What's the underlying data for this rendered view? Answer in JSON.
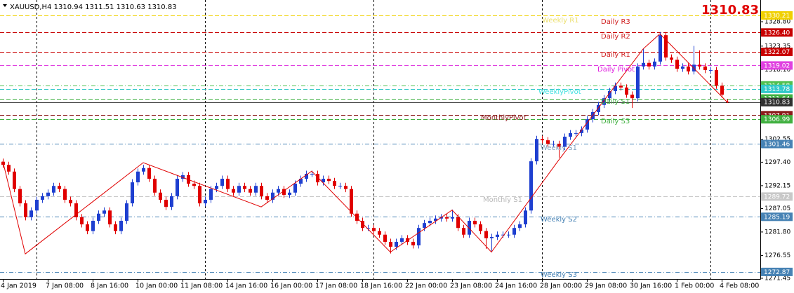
{
  "chart_data": {
    "type": "candlestick",
    "title": "XAUUSD,H4  1310.94 1311.51 1310.63 1310.83",
    "price_display": "1310.83",
    "up_color": "#1e3fd0",
    "down_color": "#e00000",
    "ylim": [
      1271.29,
      1333.66
    ],
    "yticks": [
      {
        "value": 1328.8,
        "label": "1328.80"
      },
      {
        "value": 1323.35,
        "label": "1323.35"
      },
      {
        "value": 1318.1,
        "label": "1318.10"
      },
      {
        "value": 1302.55,
        "label": "1302.55"
      },
      {
        "value": 1297.4,
        "label": "1297.40"
      },
      {
        "value": 1292.15,
        "label": "1292.15"
      },
      {
        "value": 1287.05,
        "label": "1287.05"
      },
      {
        "value": 1281.8,
        "label": "1281.80"
      },
      {
        "value": 1276.55,
        "label": "1276.55"
      },
      {
        "value": 1271.45,
        "label": "1271.45"
      }
    ],
    "categories": [
      "4 Jan 2019",
      null,
      null,
      null,
      null,
      null,
      null,
      null,
      "7 Jan 08:00",
      null,
      null,
      null,
      null,
      null,
      null,
      null,
      "8 Jan 16:00",
      null,
      null,
      null,
      null,
      null,
      null,
      null,
      "10 Jan 00:00",
      null,
      null,
      null,
      null,
      null,
      null,
      null,
      "11 Jan 08:00",
      null,
      null,
      null,
      null,
      null,
      null,
      null,
      "14 Jan 16:00",
      null,
      null,
      null,
      null,
      null,
      null,
      null,
      "16 Jan 00:00",
      null,
      null,
      null,
      null,
      null,
      null,
      null,
      "17 Jan 08:00",
      null,
      null,
      null,
      null,
      null,
      null,
      null,
      "18 Jan 16:00",
      null,
      null,
      null,
      null,
      null,
      null,
      null,
      "22 Jan 00:00",
      null,
      null,
      null,
      null,
      null,
      null,
      null,
      "23 Jan 08:00",
      null,
      null,
      null,
      null,
      null,
      null,
      null,
      "24 Jan 16:00",
      null,
      null,
      null,
      null,
      null,
      null,
      null,
      "28 Jan 00:00",
      null,
      null,
      null,
      null,
      null,
      null,
      null,
      "29 Jan 08:00",
      null,
      null,
      null,
      null,
      null,
      null,
      null,
      "30 Jan 16:00",
      null,
      null,
      null,
      null,
      null,
      null,
      null,
      "1 Feb 00:00",
      null,
      null,
      null,
      null,
      null,
      null,
      null,
      "4 Feb 08:00",
      null
    ],
    "open": [
      1297.5,
      1296.8,
      1295.3,
      1291.4,
      1288.2,
      1285.1,
      1286.6,
      1289.0,
      1289.8,
      1290.6,
      1292.1,
      1291.4,
      1289.0,
      1288.2,
      1285.1,
      1283.5,
      1282.0,
      1284.3,
      1285.9,
      1286.6,
      1283.5,
      1282.0,
      1284.3,
      1288.2,
      1292.9,
      1295.3,
      1296.1,
      1293.7,
      1290.6,
      1289.0,
      1287.4,
      1289.8,
      1293.7,
      1294.5,
      1292.6,
      1292.1,
      1288.2,
      1289.0,
      1291.4,
      1292.1,
      1293.7,
      1291.4,
      1290.6,
      1292.1,
      1291.4,
      1290.6,
      1292.1,
      1289.8,
      1289.0,
      1290.6,
      1291.4,
      1290.1,
      1290.6,
      1292.6,
      1293.7,
      1294.8,
      1294.8,
      1292.9,
      1293.7,
      1293.2,
      1292.1,
      1292.1,
      1291.4,
      1285.9,
      1284.3,
      1282.7,
      1282.7,
      1282.0,
      1281.2,
      1279.6,
      1278.5,
      1279.6,
      1280.4,
      1279.6,
      1278.8,
      1282.7,
      1283.8,
      1284.3,
      1284.8,
      1285.1,
      1284.8,
      1285.1,
      1282.7,
      1281.2,
      1284.3,
      1283.5,
      1282.0,
      1280.4,
      1280.7,
      1281.2,
      1281.2,
      1281.2,
      1282.7,
      1283.5,
      1286.6,
      1297.6,
      1302.6,
      1302.3,
      1301.5,
      1301.5,
      1300.8,
      1303.1,
      1303.9,
      1303.9,
      1304.7,
      1307.0,
      1308.6,
      1310.2,
      1311.7,
      1313.3,
      1314.5,
      1314.1,
      1312.5,
      1311.7,
      1318.8,
      1319.6,
      1318.8,
      1319.9,
      1325.8,
      1320.8,
      1320.3,
      1318.3,
      1318.8,
      1317.7,
      1319.2,
      1318.8,
      1318.0,
      1318.0,
      1314.5,
      1310.94
    ],
    "high": [
      1298.2,
      1297.5,
      1296.0,
      1292.1,
      1288.9,
      1287.3,
      1289.7,
      1290.5,
      1291.3,
      1292.8,
      1292.8,
      1292.1,
      1289.7,
      1288.9,
      1285.8,
      1284.2,
      1285.0,
      1286.6,
      1287.3,
      1287.3,
      1284.2,
      1285.0,
      1288.9,
      1293.6,
      1296.0,
      1296.8,
      1296.8,
      1294.4,
      1291.3,
      1289.7,
      1290.5,
      1294.4,
      1295.2,
      1295.2,
      1293.3,
      1292.8,
      1289.7,
      1292.1,
      1292.8,
      1294.4,
      1294.4,
      1292.1,
      1292.8,
      1292.8,
      1292.1,
      1292.8,
      1292.8,
      1290.5,
      1291.3,
      1292.1,
      1292.1,
      1291.3,
      1293.3,
      1294.4,
      1295.5,
      1295.5,
      1295.5,
      1294.4,
      1294.4,
      1293.9,
      1292.8,
      1292.8,
      1292.1,
      1286.6,
      1285.0,
      1283.4,
      1283.4,
      1282.7,
      1281.9,
      1280.3,
      1280.3,
      1281.1,
      1281.1,
      1280.3,
      1283.4,
      1284.5,
      1285.0,
      1285.5,
      1285.8,
      1285.8,
      1286.8,
      1285.8,
      1283.4,
      1285.0,
      1285.0,
      1284.2,
      1282.7,
      1281.4,
      1281.9,
      1281.9,
      1281.9,
      1283.4,
      1284.2,
      1287.3,
      1298.3,
      1303.3,
      1303.3,
      1303.0,
      1302.2,
      1302.2,
      1303.8,
      1304.6,
      1304.6,
      1305.4,
      1307.7,
      1309.3,
      1310.9,
      1312.4,
      1314.0,
      1315.2,
      1315.2,
      1314.8,
      1313.2,
      1319.5,
      1322.8,
      1320.3,
      1320.6,
      1326.5,
      1326.5,
      1321.5,
      1321.0,
      1319.5,
      1319.5,
      1323.4,
      1322.4,
      1319.5,
      1318.7,
      1318.7,
      1315.2,
      1311.51
    ],
    "low": [
      1296.1,
      1294.6,
      1290.7,
      1287.5,
      1284.4,
      1284.4,
      1285.9,
      1288.3,
      1289.1,
      1289.9,
      1290.7,
      1288.3,
      1287.5,
      1284.4,
      1282.8,
      1281.3,
      1281.3,
      1283.6,
      1285.2,
      1282.8,
      1281.3,
      1281.3,
      1283.6,
      1287.5,
      1292.2,
      1294.6,
      1293.0,
      1289.9,
      1288.3,
      1286.7,
      1286.7,
      1289.1,
      1293.0,
      1291.9,
      1291.4,
      1287.5,
      1287.5,
      1288.3,
      1290.7,
      1291.4,
      1290.7,
      1289.9,
      1289.9,
      1290.7,
      1289.9,
      1289.9,
      1289.1,
      1288.3,
      1288.3,
      1289.9,
      1289.4,
      1289.4,
      1289.9,
      1291.9,
      1293.0,
      1294.1,
      1292.2,
      1292.2,
      1292.5,
      1291.4,
      1291.4,
      1290.7,
      1285.2,
      1283.6,
      1282.0,
      1282.0,
      1281.3,
      1280.5,
      1278.9,
      1277.0,
      1277.8,
      1278.9,
      1278.9,
      1278.1,
      1278.1,
      1282.0,
      1283.1,
      1283.6,
      1284.1,
      1284.1,
      1284.1,
      1282.0,
      1280.5,
      1280.5,
      1282.8,
      1281.3,
      1278.0,
      1277.3,
      1280.0,
      1280.5,
      1280.5,
      1280.5,
      1282.0,
      1282.8,
      1285.9,
      1296.9,
      1301.6,
      1300.8,
      1300.8,
      1298.4,
      1300.1,
      1302.4,
      1303.2,
      1303.2,
      1304.0,
      1306.3,
      1307.9,
      1309.5,
      1311.0,
      1312.6,
      1313.4,
      1311.8,
      1309.5,
      1311.0,
      1318.1,
      1318.1,
      1318.1,
      1319.2,
      1320.1,
      1319.6,
      1317.6,
      1317.6,
      1317.0,
      1317.0,
      1318.1,
      1317.3,
      1317.3,
      1313.8,
      1311.8,
      1310.63
    ],
    "close": [
      1296.8,
      1295.3,
      1291.4,
      1288.2,
      1285.1,
      1286.6,
      1289.0,
      1289.8,
      1290.6,
      1292.1,
      1291.4,
      1289.0,
      1288.2,
      1285.1,
      1283.5,
      1282.0,
      1284.3,
      1285.9,
      1286.6,
      1283.5,
      1282.0,
      1284.3,
      1288.2,
      1292.9,
      1295.3,
      1296.1,
      1293.7,
      1290.6,
      1289.0,
      1287.4,
      1289.8,
      1293.7,
      1294.5,
      1292.6,
      1292.1,
      1288.2,
      1289.0,
      1291.4,
      1292.1,
      1293.7,
      1291.4,
      1290.6,
      1292.1,
      1291.4,
      1290.6,
      1292.1,
      1289.8,
      1289.0,
      1290.6,
      1291.4,
      1290.1,
      1290.6,
      1292.6,
      1293.7,
      1294.8,
      1294.8,
      1292.9,
      1293.7,
      1293.2,
      1292.1,
      1292.1,
      1291.4,
      1285.9,
      1284.3,
      1282.7,
      1282.7,
      1282.0,
      1281.2,
      1279.6,
      1278.5,
      1279.6,
      1280.4,
      1279.6,
      1278.8,
      1282.7,
      1283.8,
      1284.3,
      1284.8,
      1285.1,
      1284.8,
      1285.1,
      1282.7,
      1281.2,
      1284.3,
      1283.5,
      1282.0,
      1280.4,
      1280.7,
      1281.2,
      1281.2,
      1281.2,
      1282.7,
      1283.5,
      1286.6,
      1297.6,
      1302.6,
      1302.3,
      1301.5,
      1301.5,
      1300.8,
      1303.1,
      1303.9,
      1303.9,
      1304.7,
      1307.0,
      1308.6,
      1310.2,
      1311.7,
      1313.3,
      1314.5,
      1314.1,
      1312.5,
      1311.7,
      1318.8,
      1319.6,
      1318.8,
      1319.9,
      1325.8,
      1320.8,
      1320.3,
      1318.3,
      1318.8,
      1317.7,
      1319.2,
      1318.8,
      1318.0,
      1318.0,
      1314.5,
      1312.5,
      1310.83
    ],
    "zigzag": {
      "color": "#e00000",
      "x": [
        0,
        4,
        25,
        46,
        55,
        69,
        80,
        87,
        99,
        114,
        117,
        129
      ],
      "values": [
        1297.6,
        1276.9,
        1297.3,
        1287.4,
        1295.4,
        1277.3,
        1286.7,
        1277.3,
        1297.9,
        1322.7,
        1326.1,
        1310.8
      ]
    },
    "levels": [
      {
        "value": 1330.21,
        "label": "1330.21",
        "color": "#f0d000",
        "line_style": "dashed"
      },
      {
        "value": 1326.4,
        "label": "1326.40",
        "color": "#c80000",
        "line_style": "dashed"
      },
      {
        "value": 1322.07,
        "label": "1322.07",
        "color": "#c80000",
        "line_style": "dashed"
      },
      {
        "value": 1319.02,
        "label": "1319.02",
        "color": "#e040e0",
        "line_style": "dashed"
      },
      {
        "value": 1314.58,
        "label": "1314.58",
        "color": "#50c050",
        "line_style": "dashdot"
      },
      {
        "value": 1313.78,
        "label": "1313.78",
        "color": "#30c8c8",
        "line_style": "dashed"
      },
      {
        "value": 1311.64,
        "label": "1311.64",
        "color": "#40b040",
        "line_style": "dashed"
      },
      {
        "value": 1310.83,
        "label": "1310.83",
        "color": "#303030",
        "line_style": "solid"
      },
      {
        "value": 1307.91,
        "label": "1307.91",
        "color": "#8b1a1a",
        "line_style": "dashed"
      },
      {
        "value": 1306.99,
        "label": "1306.99",
        "color": "#40b040",
        "line_style": "dashed"
      },
      {
        "value": 1301.46,
        "label": "1301.46",
        "color": "#4682b4",
        "line_style": "dashdot"
      },
      {
        "value": 1289.72,
        "label": "1289.72",
        "color": "#c8c8c8",
        "line_style": "dashed"
      },
      {
        "value": 1285.19,
        "label": "1285.19",
        "color": "#4682b4",
        "line_style": "dashdot"
      },
      {
        "value": 1272.87,
        "label": "1272.87",
        "color": "#4682b4",
        "line_style": "dashdot"
      }
    ],
    "annotations": [
      {
        "text": "Weekly R1",
        "value": 1329.11,
        "color": "#ece070"
      },
      {
        "text": "Daily R3",
        "value": 1328.8,
        "color": "#d02020"
      },
      {
        "text": "Daily R2",
        "value": 1325.51,
        "color": "#d02020"
      },
      {
        "text": "Daily R1",
        "value": 1321.44,
        "color": "#d02020"
      },
      {
        "text": "Daily Pivot",
        "value": 1318.15,
        "color": "#e020e0"
      },
      {
        "text": "WeeklyPivot",
        "value": 1313.13,
        "color": "#40e0e0"
      },
      {
        "text": "Daily S1",
        "value": 1310.94,
        "color": "#40b040"
      },
      {
        "text": "MonthlyPivot",
        "value": 1307.33,
        "color": "#8b1a1a"
      },
      {
        "text": "Daily S3",
        "value": 1306.55,
        "color": "#40b040"
      },
      {
        "text": "Weekly S1",
        "value": 1300.6,
        "color": "#7fa0c0"
      },
      {
        "text": "Monthly S1",
        "value": 1289.0,
        "color": "#b8b8b8"
      },
      {
        "text": "Weekly S2",
        "value": 1284.61,
        "color": "#4682b4"
      },
      {
        "text": "Weekly S3",
        "value": 1272.23,
        "color": "#4682b4"
      }
    ]
  }
}
